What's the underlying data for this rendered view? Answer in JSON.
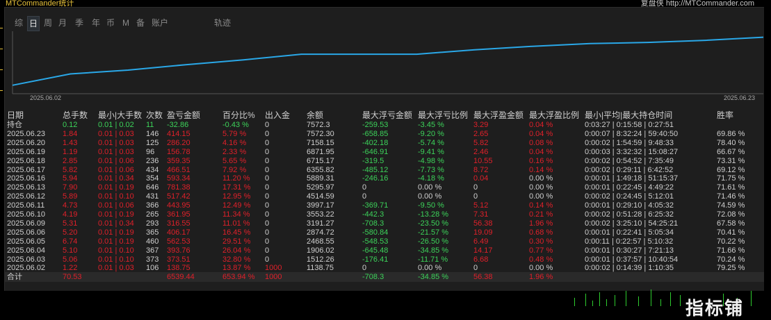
{
  "window": {
    "title": "MTCommander统计",
    "right_title": "复盘侠 http://MTCommander.com"
  },
  "tabs": [
    "综",
    "日",
    "周",
    "月",
    "季",
    "年",
    "币",
    "M",
    "备",
    "账户",
    "轨迹"
  ],
  "active_tab": "日",
  "chart": {
    "x_start": "2025.06.02",
    "x_end": "2025.06.23",
    "line_color": "#2aa8e8",
    "equity": [
      1138.75,
      2650.0,
      3162.0,
      3888.5,
      4526.5,
      5293.7,
      5293.7,
      5293.7,
      5888.9,
      6355.6,
      6714.2,
      6871.9,
      7157.5,
      7572.3
    ]
  },
  "columns": [
    "日期",
    "总手数",
    "最小|大手数",
    "次数",
    "盈亏金额",
    "百分比%",
    "出入金",
    "余额",
    "最大浮亏金额",
    "最大浮亏比例",
    "最大浮盈金额",
    "最大浮盈比例",
    "最小|平均|最大持仓时间",
    "胜率"
  ],
  "holding": {
    "label": "持仓",
    "lots": "0.12",
    "minmax": "0.01 | 0.02",
    "count": "11",
    "pnl": "-32.86",
    "pct": "-0.43 %",
    "io": "0",
    "balance": "7572.3",
    "fl_amt": "-259.53",
    "fl_pct": "-3.45 %",
    "fp_amt": "3.29",
    "fp_pct": "0.04 %",
    "hold": "0:03:27 | 0:15:58 | 0:27:51",
    "win": ""
  },
  "rows": [
    {
      "date": "2025.06.23",
      "lots": "1.84",
      "minmax": "0.01 | 0.03",
      "count": "146",
      "pnl": "414.15",
      "pct": "5.79 %",
      "io": "0",
      "balance": "7572.30",
      "fl_amt": "-658.85",
      "fl_pct": "-9.20 %",
      "fp_amt": "2.65",
      "fp_pct": "0.04 %",
      "hold": "0:00:07 | 8:32:24 | 59:40:50",
      "win": "69.86 %"
    },
    {
      "date": "2025.06.20",
      "lots": "1.43",
      "minmax": "0.01 | 0.03",
      "count": "125",
      "pnl": "286.20",
      "pct": "4.16 %",
      "io": "0",
      "balance": "7158.15",
      "fl_amt": "-402.18",
      "fl_pct": "-5.74 %",
      "fp_amt": "5.82",
      "fp_pct": "0.08 %",
      "hold": "0:00:02 | 1:54:59 | 9:48:33",
      "win": "78.40 %"
    },
    {
      "date": "2025.06.19",
      "lots": "1.19",
      "minmax": "0.01 | 0.03",
      "count": "96",
      "pnl": "156.78",
      "pct": "2.33 %",
      "io": "0",
      "balance": "6871.95",
      "fl_amt": "-646.91",
      "fl_pct": "-9.41 %",
      "fp_amt": "2.46",
      "fp_pct": "0.04 %",
      "hold": "0:00:03 | 3:32:32 | 15:08:27",
      "win": "66.67 %"
    },
    {
      "date": "2025.06.18",
      "lots": "2.85",
      "minmax": "0.01 | 0.06",
      "count": "236",
      "pnl": "359.35",
      "pct": "5.65 %",
      "io": "0",
      "balance": "6715.17",
      "fl_amt": "-319.5",
      "fl_pct": "-4.98 %",
      "fp_amt": "10.55",
      "fp_pct": "0.16 %",
      "hold": "0:00:02 | 0:54:52 | 7:35:49",
      "win": "73.31 %"
    },
    {
      "date": "2025.06.17",
      "lots": "5.82",
      "minmax": "0.01 | 0.06",
      "count": "434",
      "pnl": "466.51",
      "pct": "7.92 %",
      "io": "0",
      "balance": "6355.82",
      "fl_amt": "-485.12",
      "fl_pct": "-7.73 %",
      "fp_amt": "8.72",
      "fp_pct": "0.14 %",
      "hold": "0:00:02 | 0:29:11 | 6:42:52",
      "win": "69.12 %"
    },
    {
      "date": "2025.06.16",
      "lots": "5.94",
      "minmax": "0.01 | 0.34",
      "count": "354",
      "pnl": "593.34",
      "pct": "11.20 %",
      "io": "0",
      "balance": "5889.31",
      "fl_amt": "-246.16",
      "fl_pct": "-4.18 %",
      "fp_amt": "0.04",
      "fp_pct": "0.00 %",
      "hold": "0:00:01 | 1:49:18 | 51:15:37",
      "win": "71.75 %"
    },
    {
      "date": "2025.06.13",
      "lots": "7.90",
      "minmax": "0.01 | 0.19",
      "count": "646",
      "pnl": "781.38",
      "pct": "17.31 %",
      "io": "0",
      "balance": "5295.97",
      "fl_amt": "0",
      "fl_pct": "0.00 %",
      "fp_amt": "0",
      "fp_pct": "0.00 %",
      "hold": "0:00:01 | 0:22:45 | 4:49:22",
      "win": "71.61 %"
    },
    {
      "date": "2025.06.12",
      "lots": "5.89",
      "minmax": "0.01 | 0.10",
      "count": "431",
      "pnl": "517.42",
      "pct": "12.95 %",
      "io": "0",
      "balance": "4514.59",
      "fl_amt": "0",
      "fl_pct": "0.00 %",
      "fp_amt": "0",
      "fp_pct": "0.00 %",
      "hold": "0:00:02 | 0:24:45 | 5:12:01",
      "win": "71.46 %"
    },
    {
      "date": "2025.06.11",
      "lots": "4.73",
      "minmax": "0.01 | 0.06",
      "count": "366",
      "pnl": "443.95",
      "pct": "12.49 %",
      "io": "0",
      "balance": "3997.17",
      "fl_amt": "-369.71",
      "fl_pct": "-9.50 %",
      "fp_amt": "5.12",
      "fp_pct": "0.14 %",
      "hold": "0:00:01 | 0:29:10 | 4:05:32",
      "win": "74.59 %"
    },
    {
      "date": "2025.06.10",
      "lots": "4.19",
      "minmax": "0.01 | 0.19",
      "count": "265",
      "pnl": "361.95",
      "pct": "11.34 %",
      "io": "0",
      "balance": "3553.22",
      "fl_amt": "-442.3",
      "fl_pct": "-13.28 %",
      "fp_amt": "7.31",
      "fp_pct": "0.21 %",
      "hold": "0:00:02 | 0:51:28 | 6:25:32",
      "win": "72.08 %"
    },
    {
      "date": "2025.06.09",
      "lots": "5.31",
      "minmax": "0.01 | 0.34",
      "count": "293",
      "pnl": "316.55",
      "pct": "11.01 %",
      "io": "0",
      "balance": "3191.27",
      "fl_amt": "-708.3",
      "fl_pct": "-23.50 %",
      "fp_amt": "56.38",
      "fp_pct": "1.96 %",
      "hold": "0:00:02 | 3:25:10 | 54:25:21",
      "win": "67.58 %"
    },
    {
      "date": "2025.06.06",
      "lots": "5.20",
      "minmax": "0.01 | 0.19",
      "count": "365",
      "pnl": "406.17",
      "pct": "16.45 %",
      "io": "0",
      "balance": "2874.72",
      "fl_amt": "-580.84",
      "fl_pct": "-21.57 %",
      "fp_amt": "19.09",
      "fp_pct": "0.68 %",
      "hold": "0:00:01 | 0:22:41 | 5:05:34",
      "win": "70.41 %"
    },
    {
      "date": "2025.06.05",
      "lots": "6.74",
      "minmax": "0.01 | 0.19",
      "count": "460",
      "pnl": "562.53",
      "pct": "29.51 %",
      "io": "0",
      "balance": "2468.55",
      "fl_amt": "-548.53",
      "fl_pct": "-26.50 %",
      "fp_amt": "6.49",
      "fp_pct": "0.30 %",
      "hold": "0:00:11 | 0:22:57 | 5:10:32",
      "win": "70.22 %"
    },
    {
      "date": "2025.06.04",
      "lots": "5.10",
      "minmax": "0.01 | 0.10",
      "count": "367",
      "pnl": "393.76",
      "pct": "26.04 %",
      "io": "0",
      "balance": "1906.02",
      "fl_amt": "-645.48",
      "fl_pct": "-34.85 %",
      "fp_amt": "14.17",
      "fp_pct": "0.77 %",
      "hold": "0:00:01 | 0:30:27 | 7:21:13",
      "win": "71.66 %"
    },
    {
      "date": "2025.06.03",
      "lots": "5.06",
      "minmax": "0.01 | 0.10",
      "count": "373",
      "pnl": "373.51",
      "pct": "32.80 %",
      "io": "0",
      "balance": "1512.26",
      "fl_amt": "-176.41",
      "fl_pct": "-11.71 %",
      "fp_amt": "6.68",
      "fp_pct": "0.48 %",
      "hold": "0:00:01 | 0:37:57 | 10:40:54",
      "win": "70.24 %"
    },
    {
      "date": "2025.06.02",
      "lots": "1.22",
      "minmax": "0.01 | 0.03",
      "count": "106",
      "pnl": "138.75",
      "pct": "13.87 %",
      "io": "1000",
      "balance": "1138.75",
      "fl_amt": "0",
      "fl_pct": "0.00 %",
      "fp_amt": "0",
      "fp_pct": "0.00 %",
      "hold": "0:00:02 | 0:14:39 | 1:10:35",
      "win": "79.25 %"
    }
  ],
  "total": {
    "label": "合计",
    "lots": "70.53",
    "pnl": "6539.44",
    "pct": "653.94 %",
    "io": "1000",
    "fl_amt": "-708.3",
    "fl_pct": "-34.85 %",
    "fp_amt": "56.38",
    "fp_pct": "1.96 %"
  },
  "watermark": "指标铺"
}
